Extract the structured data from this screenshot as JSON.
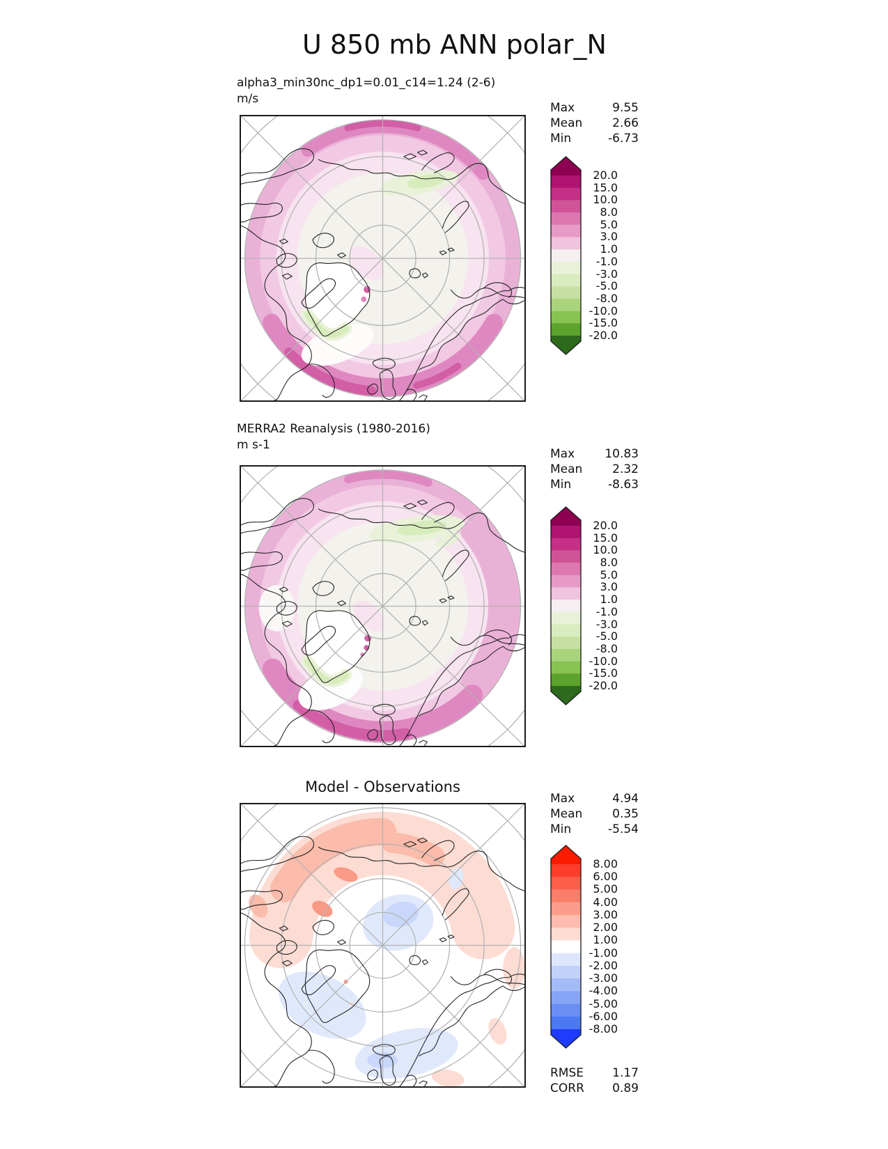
{
  "figure": {
    "title": "U 850 mb ANN polar_N"
  },
  "panels": [
    {
      "subtitle": "alpha3_min30nc_dp1=0.01_c14=1.24 (2-6)",
      "units": "m/s",
      "stats": [
        {
          "label": "Max",
          "value": "9.55"
        },
        {
          "label": "Mean",
          "value": "2.66"
        },
        {
          "label": "Min",
          "value": "-6.73"
        }
      ],
      "colorbar": "pink_green"
    },
    {
      "subtitle": "MERRA2 Reanalysis (1980-2016)",
      "units": "m s-1",
      "stats": [
        {
          "label": "Max",
          "value": "10.83"
        },
        {
          "label": "Mean",
          "value": "2.32"
        },
        {
          "label": "Min",
          "value": "-8.63"
        }
      ],
      "colorbar": "pink_green"
    },
    {
      "title": "Model - Observations",
      "stats": [
        {
          "label": "Max",
          "value": "4.94"
        },
        {
          "label": "Mean",
          "value": "0.35"
        },
        {
          "label": "Min",
          "value": "-5.54"
        }
      ],
      "extra_stats": [
        {
          "label": "RMSE",
          "value": "1.17"
        },
        {
          "label": "CORR",
          "value": "0.89"
        }
      ],
      "colorbar": "red_blue"
    }
  ],
  "colorbars": {
    "pink_green": {
      "arrow_top": "#8e0152",
      "segments": [
        "#b01371",
        "#c62f86",
        "#d05398",
        "#dc78af",
        "#e79ac6",
        "#f0c3de",
        "#f6eff1",
        "#e9f2d8",
        "#d9ecbf",
        "#c6e0a1",
        "#aad47c",
        "#88c252",
        "#5ca32c"
      ],
      "arrow_bottom": "#2d6a1c",
      "ticks": [
        "20.0",
        "15.0",
        "10.0",
        "8.0",
        "5.0",
        "3.0",
        "1.0",
        "-1.0",
        "-3.0",
        "-5.0",
        "-8.0",
        "-10.0",
        "-15.0",
        "-20.0"
      ]
    },
    "red_blue": {
      "arrow_top": "#fa1b00",
      "segments": [
        "#fb3d2a",
        "#fb5f4a",
        "#fb7e6a",
        "#fc9d8c",
        "#fdbcae",
        "#fedcd2",
        "#ffffff",
        "#dde7fc",
        "#c2d1fa",
        "#a5bbf8",
        "#87a5f6",
        "#698ff4",
        "#4b79f2"
      ],
      "arrow_bottom": "#1e3bfe",
      "ticks": [
        "8.00",
        "6.00",
        "5.00",
        "4.00",
        "3.00",
        "2.00",
        "1.00",
        "-1.00",
        "-2.00",
        "-3.00",
        "-4.00",
        "-5.00",
        "-6.00",
        "-8.00"
      ]
    }
  },
  "map_colors": {
    "graticule": "#b3b3b3",
    "coastline": "#222222",
    "ring_5_8": "#eab1d7",
    "ring_3_5": "#f2c9e3",
    "ring_1_3": "#f8e3f0",
    "neutral": "#f3f2ec",
    "strong_8_10": "#df87c0",
    "core_10_15": "#d25ea6",
    "green_1_3": "#e9f2d9",
    "green_3_5": "#d7ecbb",
    "land_white": "#ffffff",
    "red_1_2": "#fcdcd3",
    "red_2_3": "#fbbcab",
    "red_3_4": "#f89a85",
    "blue_1_2": "#e0e9fc",
    "blue_2_3": "#c8d7fa"
  },
  "chart_data": [
    {
      "type": "heatmap",
      "title": "alpha3_min30nc_dp1=0.01_c14=1.24 (2-6)",
      "ylabel": "m/s",
      "projection": "north polar stereographic",
      "stats": {
        "max": 9.55,
        "mean": 2.66,
        "min": -6.73
      },
      "colorbar_ticks": [
        20.0,
        15.0,
        10.0,
        8.0,
        5.0,
        3.0,
        1.0,
        -1.0,
        -3.0,
        -5.0,
        -8.0,
        -10.0,
        -15.0,
        -20.0
      ],
      "colorbar_style": "pink positive / green negative, arrow-capped"
    },
    {
      "type": "heatmap",
      "title": "MERRA2 Reanalysis (1980-2016)",
      "ylabel": "m s-1",
      "projection": "north polar stereographic",
      "stats": {
        "max": 10.83,
        "mean": 2.32,
        "min": -8.63
      },
      "colorbar_ticks": [
        20.0,
        15.0,
        10.0,
        8.0,
        5.0,
        3.0,
        1.0,
        -1.0,
        -3.0,
        -5.0,
        -8.0,
        -10.0,
        -15.0,
        -20.0
      ],
      "colorbar_style": "pink positive / green negative, arrow-capped"
    },
    {
      "type": "heatmap",
      "title": "Model - Observations",
      "projection": "north polar stereographic",
      "stats": {
        "max": 4.94,
        "mean": 0.35,
        "min": -5.54,
        "rmse": 1.17,
        "corr": 0.89
      },
      "colorbar_ticks": [
        8.0,
        6.0,
        5.0,
        4.0,
        3.0,
        2.0,
        1.0,
        -1.0,
        -2.0,
        -3.0,
        -4.0,
        -5.0,
        -6.0,
        -8.0
      ],
      "colorbar_style": "red positive / blue negative, arrow-capped"
    }
  ]
}
